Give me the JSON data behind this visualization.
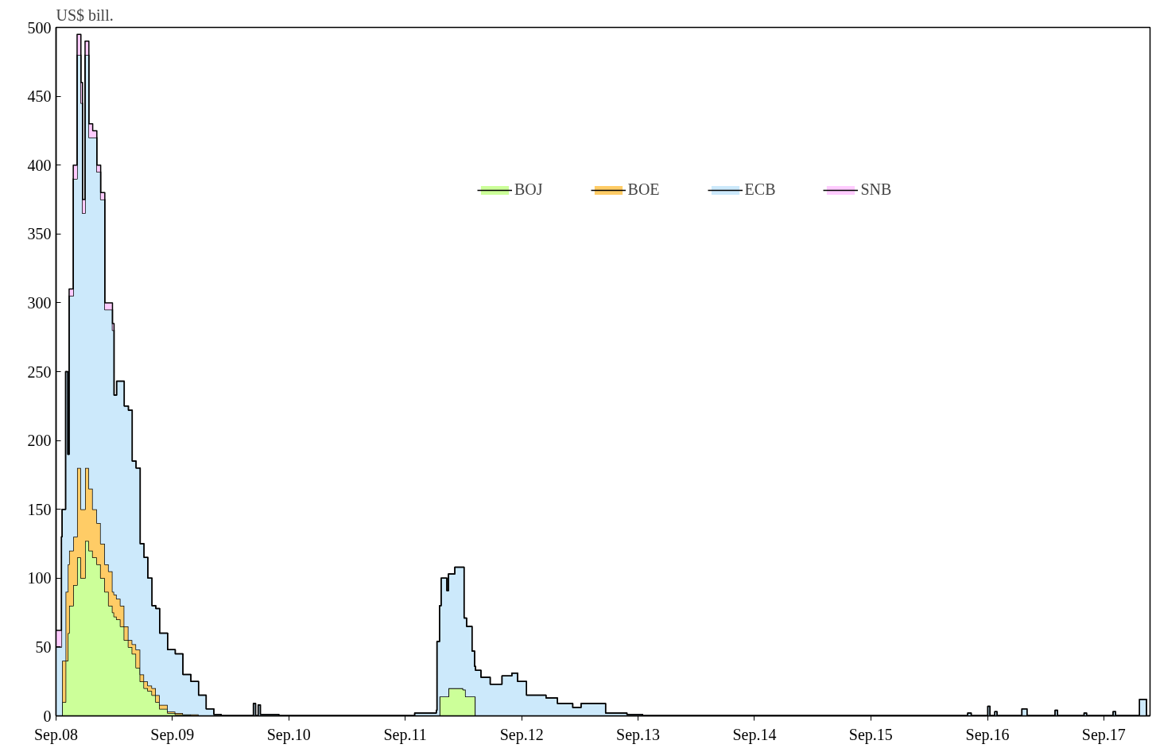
{
  "chart_data": {
    "type": "area",
    "stacked": true,
    "ylabel": "US$ bill.",
    "x": [
      "2008-09-01",
      "2008-09-18",
      "2008-09-20",
      "2008-10-01",
      "2008-10-08",
      "2008-10-12",
      "2008-10-25",
      "2008-11-06",
      "2008-11-18",
      "2008-11-23",
      "2008-12-01",
      "2008-12-13",
      "2008-12-25",
      "2009-01-07",
      "2009-01-19",
      "2009-02-01",
      "2009-02-13",
      "2009-02-25",
      "2009-03-02",
      "2009-03-10",
      "2009-03-22",
      "2009-04-03",
      "2009-04-16",
      "2009-04-28",
      "2009-05-10",
      "2009-05-23",
      "2009-06-04",
      "2009-06-16",
      "2009-06-29",
      "2009-07-11",
      "2009-07-23",
      "2009-08-17",
      "2009-09-10",
      "2009-10-04",
      "2009-10-29",
      "2009-11-22",
      "2009-12-16",
      "2010-01-09",
      "2010-02-01",
      "2010-05-13",
      "2010-05-20",
      "2010-05-28",
      "2010-06-04",
      "2010-08-01",
      "2011-10-01",
      "2011-12-08",
      "2011-12-10",
      "2011-12-18",
      "2011-12-23",
      "2012-01-10",
      "2012-01-15",
      "2012-02-04",
      "2012-03-01",
      "2012-03-04",
      "2012-03-09",
      "2012-03-12",
      "2012-03-29",
      "2012-04-06",
      "2012-04-09",
      "2012-04-26",
      "2012-05-25",
      "2012-07-01",
      "2012-08-01",
      "2012-08-19",
      "2012-09-16",
      "2012-11-16",
      "2012-12-22",
      "2013-02-08",
      "2013-03-06",
      "2013-05-22",
      "2013-07-28",
      "2013-09-15",
      "2016-07-01",
      "2016-07-12",
      "2016-09-02",
      "2016-09-09",
      "2016-09-24",
      "2016-10-01",
      "2016-12-18",
      "2017-01-03",
      "2017-04-01",
      "2017-04-09",
      "2017-07-01",
      "2017-07-09",
      "2017-09-30",
      "2017-10-08",
      "2017-12-22",
      "2018-01-08",
      "2018-01-13"
    ],
    "series": [
      {
        "name": "BOJ",
        "color": "#ccff99",
        "values": [
          0,
          0,
          10,
          40,
          60,
          80,
          95,
          115,
          100,
          100,
          127,
          120,
          115,
          110,
          100,
          90,
          80,
          75,
          72,
          70,
          65,
          55,
          50,
          45,
          35,
          25,
          20,
          18,
          15,
          10,
          5,
          2,
          1,
          1,
          0,
          0,
          0,
          0,
          0,
          0,
          0,
          0,
          0,
          0,
          0,
          0,
          0,
          14,
          14,
          14,
          20,
          20,
          19,
          19,
          14,
          14,
          14,
          14,
          0,
          0,
          0,
          0,
          0,
          0,
          0,
          0,
          0,
          0,
          0,
          0,
          0,
          0,
          0,
          0,
          0,
          0,
          0,
          0,
          0,
          0,
          0,
          0,
          0,
          0,
          0,
          0,
          0,
          0,
          0
        ]
      },
      {
        "name": "BOE",
        "color": "#ffcc66",
        "values": [
          0,
          0,
          30,
          50,
          50,
          40,
          35,
          65,
          50,
          50,
          53,
          45,
          35,
          30,
          25,
          20,
          25,
          15,
          16,
          15,
          15,
          10,
          5,
          7,
          13,
          5,
          5,
          4,
          5,
          5,
          3,
          1,
          1,
          0,
          1,
          0,
          0,
          0,
          0,
          0,
          0,
          0,
          0,
          0,
          0,
          0,
          0,
          0,
          0,
          0,
          0,
          0,
          0,
          0,
          0,
          0,
          0,
          0,
          0,
          0,
          0,
          0,
          0,
          0,
          0,
          0,
          0,
          0,
          0,
          0,
          0,
          0,
          0,
          0,
          0,
          0,
          0,
          0,
          0,
          0,
          0,
          0,
          0,
          0,
          0,
          0,
          0,
          0,
          0
        ]
      },
      {
        "name": "ECB",
        "color": "#cce9fb",
        "values": [
          50,
          130,
          110,
          160,
          80,
          185,
          260,
          300,
          295,
          215,
          300,
          255,
          270,
          255,
          250,
          185,
          190,
          190,
          145,
          158,
          163,
          160,
          167,
          133,
          132,
          95,
          90,
          78,
          60,
          63,
          52,
          45,
          43,
          29,
          24,
          15,
          5,
          1,
          0,
          9,
          0,
          8,
          1,
          0,
          2,
          4,
          54,
          66,
          86,
          77,
          83,
          88,
          89,
          52,
          57,
          51,
          33,
          22,
          33,
          28,
          23,
          29,
          31,
          25,
          15,
          13,
          9,
          6,
          9,
          2,
          1,
          0,
          2,
          0,
          7,
          0,
          3,
          0,
          5,
          0,
          4,
          0,
          2,
          0,
          3,
          0,
          12,
          12,
          0
        ]
      },
      {
        "name": "SNB",
        "color": "#ffccff",
        "values": [
          12,
          0,
          0,
          0,
          0,
          5,
          10,
          15,
          15,
          10,
          10,
          10,
          5,
          5,
          5,
          5,
          5,
          5,
          0,
          0,
          0,
          0,
          0,
          0,
          0,
          0,
          0,
          0,
          0,
          0,
          0,
          0,
          0,
          0,
          0,
          0,
          0,
          0,
          0,
          0,
          0,
          0,
          0,
          0,
          0,
          0,
          0,
          0,
          0,
          0,
          0,
          0,
          0,
          0,
          0,
          0,
          0,
          0,
          0,
          0,
          0,
          0,
          0,
          0,
          0,
          0,
          0,
          0,
          0,
          0,
          0,
          0,
          0,
          0,
          0,
          0,
          0,
          0,
          0,
          0,
          0,
          0,
          0,
          0,
          0,
          0,
          0,
          0,
          0
        ]
      }
    ],
    "xlim": [
      "2008-09-01",
      "2018-01-24"
    ],
    "xticks": [
      {
        "value": "2008-09-01",
        "label": "Sep.08"
      },
      {
        "value": "2009-09-01",
        "label": "Sep.09"
      },
      {
        "value": "2010-09-01",
        "label": "Sep.10"
      },
      {
        "value": "2011-09-01",
        "label": "Sep.11"
      },
      {
        "value": "2012-09-01",
        "label": "Sep.12"
      },
      {
        "value": "2013-09-01",
        "label": "Sep.13"
      },
      {
        "value": "2014-09-01",
        "label": "Sep.14"
      },
      {
        "value": "2015-09-01",
        "label": "Sep.15"
      },
      {
        "value": "2016-09-01",
        "label": "Sep.16"
      },
      {
        "value": "2017-09-01",
        "label": "Sep.17"
      }
    ],
    "ylim": [
      0,
      500
    ],
    "yticks": [
      0,
      50,
      100,
      150,
      200,
      250,
      300,
      350,
      400,
      450,
      500
    ],
    "legend": "top",
    "grid": false
  }
}
